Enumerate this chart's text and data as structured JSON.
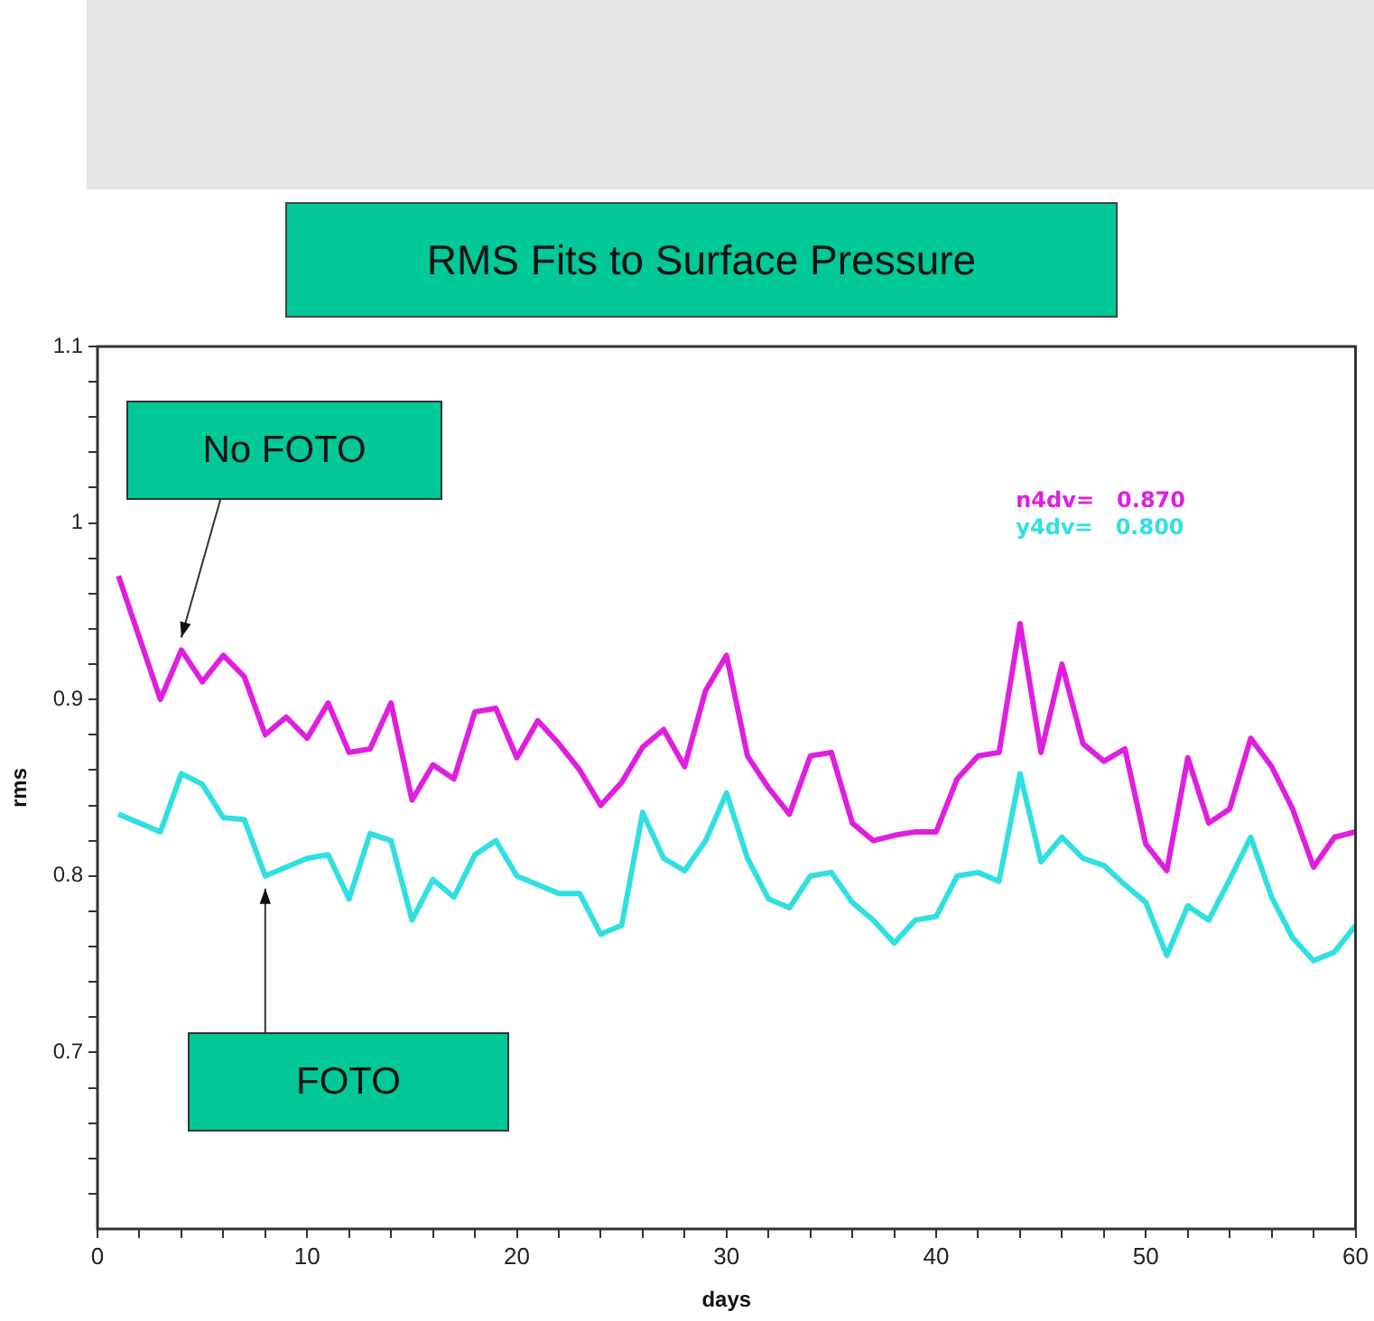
{
  "chart_data": {
    "type": "line",
    "title": "RMS Fits to Surface Pressure",
    "xlabel": "days",
    "ylabel": "rms",
    "x": [
      1,
      2,
      3,
      4,
      5,
      6,
      7,
      8,
      9,
      10,
      11,
      12,
      13,
      14,
      15,
      16,
      17,
      18,
      19,
      20,
      21,
      22,
      23,
      24,
      25,
      26,
      27,
      28,
      29,
      30,
      31,
      32,
      33,
      34,
      35,
      36,
      37,
      38,
      39,
      40,
      41,
      42,
      43,
      44,
      45,
      46,
      47,
      48,
      49,
      50,
      51,
      52,
      53,
      54,
      55,
      56,
      57,
      58,
      59,
      60
    ],
    "series": [
      {
        "name": "n4dv=   0.870",
        "color": "#e01ee0",
        "values": [
          0.97,
          0.935,
          0.9,
          0.928,
          0.91,
          0.925,
          0.913,
          0.88,
          0.89,
          0.878,
          0.898,
          0.87,
          0.872,
          0.898,
          0.843,
          0.863,
          0.855,
          0.893,
          0.895,
          0.867,
          0.888,
          0.875,
          0.86,
          0.84,
          0.853,
          0.873,
          0.883,
          0.862,
          0.905,
          0.925,
          0.868,
          0.85,
          0.835,
          0.868,
          0.87,
          0.83,
          0.82,
          0.823,
          0.825,
          0.825,
          0.855,
          0.868,
          0.87,
          0.943,
          0.87,
          0.92,
          0.875,
          0.865,
          0.872,
          0.818,
          0.803,
          0.867,
          0.83,
          0.838,
          0.878,
          0.862,
          0.838,
          0.805,
          0.822,
          0.825
        ]
      },
      {
        "name": "y4dv=   0.800",
        "color": "#30e0e0",
        "values": [
          0.835,
          0.83,
          0.825,
          0.858,
          0.852,
          0.833,
          0.832,
          0.8,
          0.805,
          0.81,
          0.812,
          0.787,
          0.824,
          0.82,
          0.775,
          0.798,
          0.788,
          0.812,
          0.82,
          0.8,
          0.795,
          0.79,
          0.79,
          0.767,
          0.772,
          0.836,
          0.81,
          0.803,
          0.82,
          0.847,
          0.81,
          0.787,
          0.782,
          0.8,
          0.802,
          0.785,
          0.775,
          0.762,
          0.775,
          0.777,
          0.8,
          0.802,
          0.797,
          0.858,
          0.808,
          0.822,
          0.81,
          0.806,
          0.795,
          0.785,
          0.755,
          0.783,
          0.775,
          0.798,
          0.822,
          0.788,
          0.765,
          0.752,
          0.757,
          0.772
        ]
      }
    ],
    "xlim": [
      0,
      60
    ],
    "xticks": [
      0,
      {
        "value": 2,
        "label": null
      },
      {
        "value": 4,
        "label": null
      },
      {
        "value": 6,
        "label": null
      },
      {
        "value": 8,
        "label": null
      },
      10,
      {
        "value": 12,
        "label": null
      },
      {
        "value": 14,
        "label": null
      },
      {
        "value": 16,
        "label": null
      },
      {
        "value": 18,
        "label": null
      },
      20,
      {
        "value": 22,
        "label": null
      },
      {
        "value": 24,
        "label": null
      },
      {
        "value": 26,
        "label": null
      },
      {
        "value": 28,
        "label": null
      },
      30,
      {
        "value": 32,
        "label": null
      },
      {
        "value": 34,
        "label": null
      },
      {
        "value": 36,
        "label": null
      },
      {
        "value": 38,
        "label": null
      },
      40,
      {
        "value": 42,
        "label": null
      },
      {
        "value": 44,
        "label": null
      },
      {
        "value": 46,
        "label": null
      },
      {
        "value": 48,
        "label": null
      },
      50,
      {
        "value": 52,
        "label": null
      },
      {
        "value": 54,
        "label": null
      },
      {
        "value": 56,
        "label": null
      },
      {
        "value": 58,
        "label": null
      },
      60
    ],
    "ylim": [
      0.6,
      1.1
    ],
    "yticks": [
      {
        "value": 0.62,
        "label": null
      },
      {
        "value": 0.64,
        "label": null
      },
      {
        "value": 0.66,
        "label": null
      },
      {
        "value": 0.68,
        "label": null
      },
      0.7,
      {
        "value": 0.72,
        "label": null
      },
      {
        "value": 0.74,
        "label": null
      },
      {
        "value": 0.76,
        "label": null
      },
      {
        "value": 0.78,
        "label": null
      },
      0.8,
      {
        "value": 0.82,
        "label": null
      },
      {
        "value": 0.84,
        "label": null
      },
      {
        "value": 0.86,
        "label": null
      },
      {
        "value": 0.88,
        "label": null
      },
      0.9,
      {
        "value": 0.92,
        "label": null
      },
      {
        "value": 0.94,
        "label": null
      },
      {
        "value": 0.96,
        "label": null
      },
      {
        "value": 0.98,
        "label": null
      },
      1,
      {
        "value": 1.02,
        "label": null
      },
      {
        "value": 1.04,
        "label": null
      },
      {
        "value": 1.06,
        "label": null
      },
      {
        "value": 1.08,
        "label": null
      },
      1.1
    ],
    "grid": false,
    "legend": "top right",
    "marker": "none",
    "line_style": "solid",
    "annotations": [
      {
        "text": "No FOTO",
        "x": 4,
        "y": 0.928
      },
      {
        "text": "FOTO",
        "x": 8,
        "y": 0.8
      }
    ]
  }
}
